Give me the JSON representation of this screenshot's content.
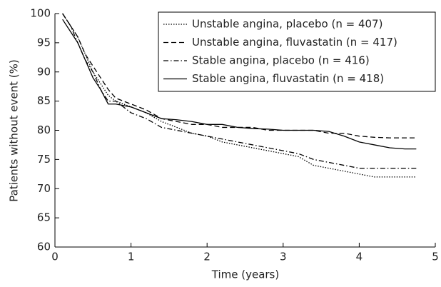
{
  "chart_data": {
    "type": "line",
    "xlabel": "Time (years)",
    "ylabel": "Patients without event (%)",
    "x": [
      0.1,
      0.2,
      0.3,
      0.4,
      0.5,
      0.6,
      0.7,
      0.8,
      1.0,
      1.2,
      1.4,
      1.6,
      1.8,
      2.0,
      2.2,
      2.4,
      2.6,
      2.8,
      3.0,
      3.2,
      3.4,
      3.6,
      3.8,
      4.0,
      4.2,
      4.4,
      4.6,
      4.75
    ],
    "series": [
      {
        "name": "Unstable angina, placebo (n = 407)",
        "color": "#000000",
        "linestyle": "dotted",
        "values": [
          100,
          98,
          96,
          93,
          90,
          88,
          86,
          85,
          84,
          83,
          81.5,
          80.5,
          79.5,
          79,
          78,
          77.5,
          77,
          76.5,
          76,
          75.5,
          74,
          73.5,
          73,
          72.5,
          72,
          72,
          72,
          72
        ]
      },
      {
        "name": "Unstable angina, fluvastatin (n = 417)",
        "color": "#000000",
        "linestyle": "dashed",
        "values": [
          100,
          98,
          96,
          93,
          91,
          89,
          87,
          85.5,
          84.5,
          83.5,
          82,
          81.5,
          81,
          81,
          80.5,
          80.5,
          80.5,
          80,
          80,
          80,
          80,
          79.5,
          79.5,
          79,
          78.8,
          78.7,
          78.7,
          78.7
        ]
      },
      {
        "name": "Stable angina, placebo (n = 416)",
        "color": "#000000",
        "linestyle": "dashdot",
        "values": [
          100,
          98,
          95,
          92,
          90,
          87,
          85,
          85,
          83,
          82,
          80.5,
          80,
          79.5,
          79,
          78.5,
          78,
          77.5,
          77,
          76.5,
          76,
          75,
          74.5,
          74,
          73.5,
          73.5,
          73.5,
          73.5,
          73.5
        ]
      },
      {
        "name": "Stable angina, fluvastatin (n = 418)",
        "color": "#000000",
        "linestyle": "solid",
        "values": [
          99,
          97,
          95,
          92,
          89,
          87,
          84.5,
          84.5,
          84,
          83,
          82,
          81.8,
          81.5,
          81,
          81,
          80.5,
          80.3,
          80.2,
          80,
          80,
          80,
          79.8,
          79,
          78,
          77.5,
          77,
          76.8,
          76.8
        ]
      }
    ],
    "xlim": [
      0,
      5
    ],
    "xticks": [
      0,
      1,
      2,
      3,
      4,
      5
    ],
    "ylim": [
      60,
      100
    ],
    "yticks": [
      60,
      65,
      70,
      75,
      80,
      85,
      90,
      95,
      100
    ],
    "grid": false,
    "legend": "upper right"
  }
}
